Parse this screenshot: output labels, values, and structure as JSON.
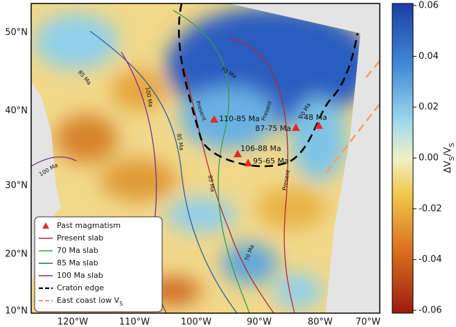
{
  "map": {
    "lat_labels": [
      "50°N",
      "40°N",
      "30°N",
      "20°N",
      "10°N"
    ],
    "lon_labels": [
      "120°W",
      "110°W",
      "100°W",
      "90°W",
      "80°W",
      "70°W"
    ],
    "annotations": [
      "110-85 Ma",
      "87-75 Ma",
      "~48 Ma",
      "106-88 Ma",
      "95-65 Ma"
    ],
    "contour_labels": [
      "100 Ma",
      "85 Ma",
      "100 Ma",
      "85 Ma",
      "Present",
      "70 Ma",
      "70 Ma",
      "85 Ma",
      "Present",
      "Present",
      "70 Ma"
    ]
  },
  "colorbar": {
    "label": [
      "ΔV",
      "S",
      "/V",
      "S"
    ],
    "range": [
      -0.06,
      0.06
    ],
    "ticks": [
      {
        "value": 0.06,
        "label": "0.06"
      },
      {
        "value": 0.04,
        "label": "0.04"
      },
      {
        "value": 0.02,
        "label": "0.02"
      },
      {
        "value": 0,
        "label": "0.00"
      },
      {
        "value": -0.02,
        "label": "-0.02"
      },
      {
        "value": -0.04,
        "label": "-0.04"
      },
      {
        "value": -0.06,
        "label": "-0.06"
      }
    ]
  },
  "legend": [
    {
      "label": "Past magmatism",
      "color": "#e8282b",
      "style": "triangle"
    },
    {
      "label": "Present slab",
      "color": "#b3272d",
      "style": "solid"
    },
    {
      "label": "70 Ma slab",
      "color": "#3a9a4a",
      "style": "solid"
    },
    {
      "label": "85 Ma slab",
      "color": "#2c5c9e",
      "style": "solid"
    },
    {
      "label": "100 Ma slab",
      "color": "#7a2c91",
      "style": "solid"
    },
    {
      "label": "Craton edge",
      "color": "#000000",
      "style": "dashed"
    },
    {
      "label": "East coast low V",
      "sub": "S",
      "color": "#f0a070",
      "style": "dashed"
    }
  ]
}
